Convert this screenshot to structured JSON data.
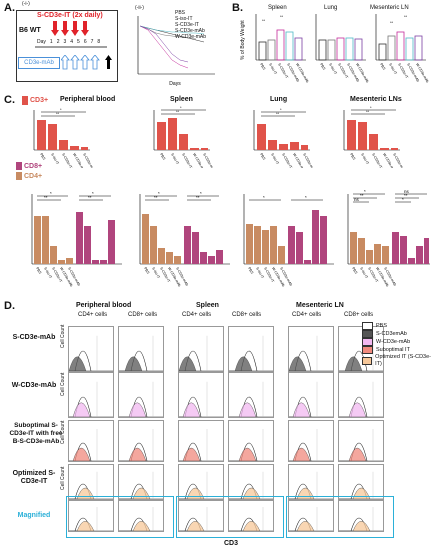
{
  "panel_a": {
    "letter": "A.",
    "sub_i": "(-i-)",
    "sub_ii": "(-ii-)",
    "mouse": "B6 WT",
    "treatment_label": "S-CD3e-IT (2x daily)",
    "days": [
      "Day",
      "1",
      "2",
      "3",
      "4",
      "5",
      "6",
      "7",
      "8"
    ],
    "mab_label": "CD3e-mAb",
    "treatment_color": "#e0232a",
    "mab_color": "#4a90d9"
  },
  "panel_b": {
    "letter": "B.",
    "ylabel": "% of Body Weight",
    "organs": [
      "Spleen",
      "Lung",
      "Mesenteric LN"
    ],
    "groups": [
      "PBS",
      "S-iso-IT",
      "S-CD3e-IT",
      "S-CD3e-mAb",
      "W-CD3e-mAb"
    ]
  },
  "panel_c": {
    "letter": "C.",
    "cd3_label": "CD3+",
    "cd8_label": "CD8+",
    "cd4_label": "CD4+",
    "cd3_color": "#e0534a",
    "cd8_color": "#b0457d",
    "cd4_color": "#c88b62",
    "col_titles": [
      "Peripheral blood",
      "Spleen",
      "Lung",
      "Mesenteric LNs"
    ],
    "ylabels_top": [
      "Absolute cells number in 1 ul blood",
      "Absolute cells number per whole spleen (×10^6 cells)",
      "Absolute cells number per whole lung (×10^4 cells)",
      "% in CD45.2"
    ],
    "ylabels_bottom": [
      "Absoulte cells number in 1 ul blood",
      "Absolute cells number in whole spleen (×10^6 cells)",
      "Absoulte cells number in whole lung (×10^3 cells)",
      "% of CD45.2"
    ],
    "groups": [
      "PBS",
      "S-iso-IT",
      "S-CD3e-IT",
      "W-CD3e-mAb",
      "S-CD3e-mAb"
    ],
    "sig": [
      "*",
      "**",
      "ns"
    ]
  },
  "panel_d": {
    "letter": "D.",
    "col_groups": [
      "Peripheral blood",
      "Spleen",
      "Mesenteric LN"
    ],
    "col_sub": [
      "CD4+ cells",
      "CD8+ cells"
    ],
    "row_labels": [
      "S-CD3e-mAb",
      "W-CD3e-mAb",
      "Suboptimal S-CD3e-IT with free B-S-CD3e-mAb",
      "Optimized S-CD3e-IT",
      "Magnified"
    ],
    "ylabel": "Cell Count",
    "xlabel": "CD3",
    "legend": [
      {
        "label": "PBS",
        "color": "#ffffff"
      },
      {
        "label": "S-CD3emAb",
        "color": "#555555"
      },
      {
        "label": "W-CD3e-mAb",
        "color": "#f2b8f0"
      },
      {
        "label": "Suboptimal IT",
        "color": "#f08a7e"
      },
      {
        "label": "Optimized IT (S-CD3e-IT)",
        "color": "#f7c89a"
      }
    ],
    "magnified_color": "#2bb0d8"
  }
}
